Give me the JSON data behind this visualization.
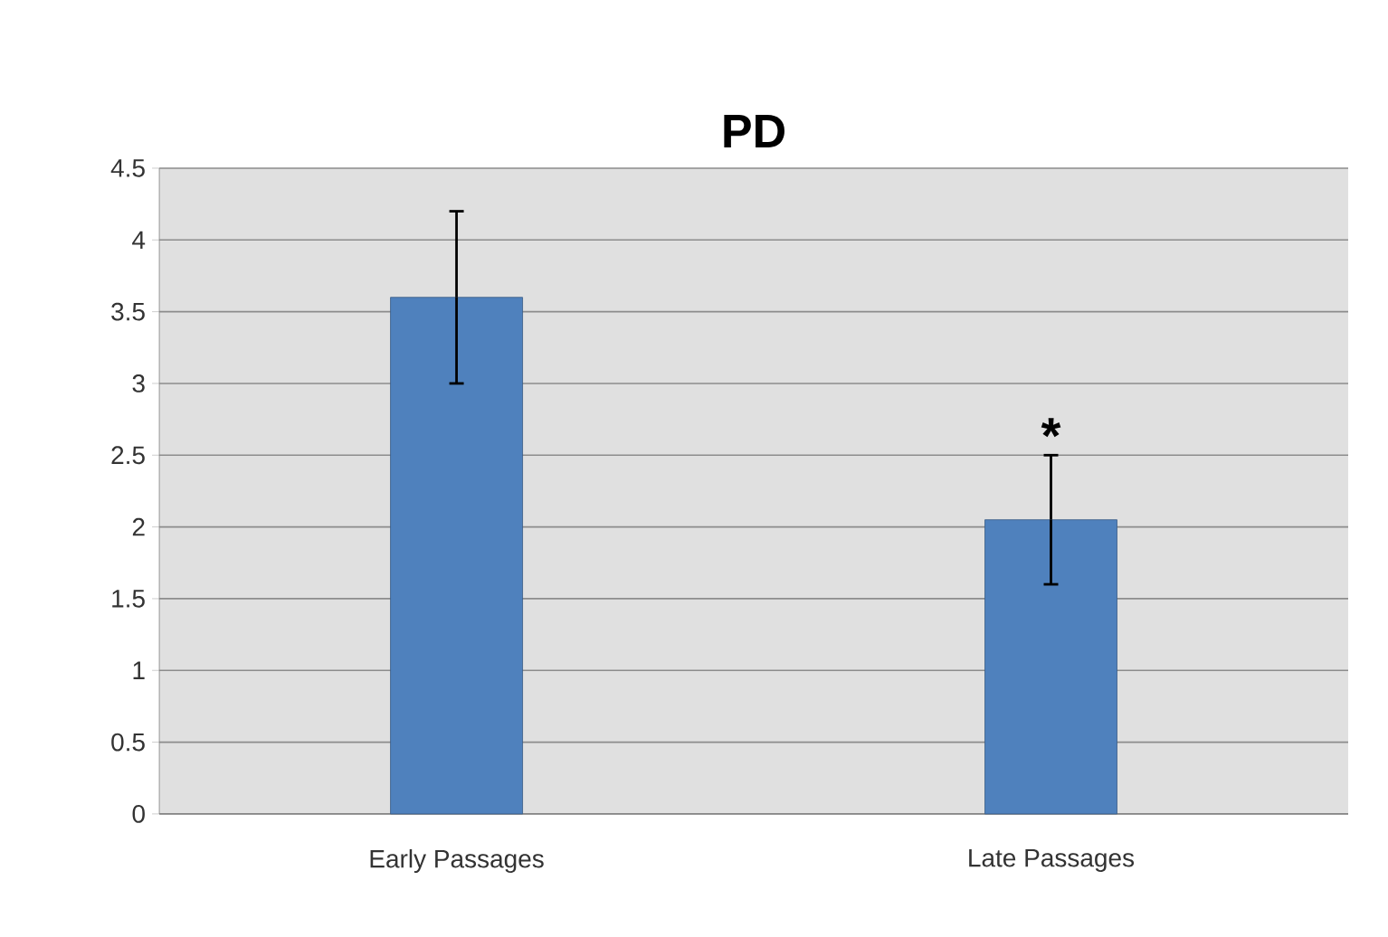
{
  "chart_data": {
    "type": "bar",
    "title": "PD",
    "categories": [
      "Early Passages",
      "Late Passages"
    ],
    "values": [
      3.6,
      2.05
    ],
    "errors": [
      0.6,
      0.45
    ],
    "color": "#4f81bd",
    "ylim": [
      0,
      4.5
    ],
    "yticks": [
      0,
      0.5,
      1,
      1.5,
      2,
      2.5,
      3,
      3.5,
      4,
      4.5
    ],
    "grid": "y",
    "annotations": [
      {
        "text": "*",
        "x": "Late Passages",
        "y": 2.5
      }
    ]
  }
}
